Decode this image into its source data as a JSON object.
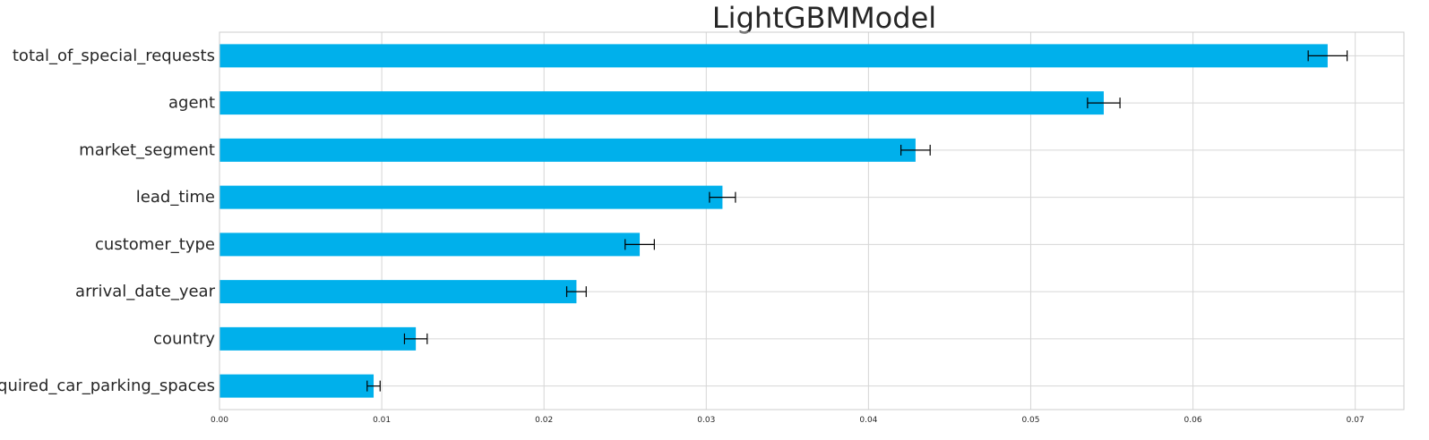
{
  "chart_data": {
    "type": "bar",
    "orientation": "horizontal",
    "title": "LightGBMModel",
    "xlabel": "",
    "ylabel": "",
    "categories": [
      "total_of_special_requests",
      "agent",
      "market_segment",
      "lead_time",
      "customer_type",
      "arrival_date_year",
      "country",
      "required_car_parking_spaces"
    ],
    "values": [
      0.0683,
      0.0545,
      0.0429,
      0.031,
      0.0259,
      0.022,
      0.0121,
      0.0095
    ],
    "errors": [
      0.0012,
      0.001,
      0.0009,
      0.0008,
      0.0009,
      0.0006,
      0.0007,
      0.0004
    ],
    "xlim": [
      0,
      0.073
    ],
    "xticks": [
      "0.00",
      "0.01",
      "0.02",
      "0.03",
      "0.04",
      "0.05",
      "0.06",
      "0.07"
    ],
    "xtick_values": [
      0,
      0.01,
      0.02,
      0.03,
      0.04,
      0.05,
      0.06,
      0.07
    ],
    "grid": true,
    "legend": "none",
    "colors": {
      "bar": "#00b0eb",
      "error_bar": "#000000",
      "grid": "#d6d6d6",
      "text": "#262626"
    }
  }
}
